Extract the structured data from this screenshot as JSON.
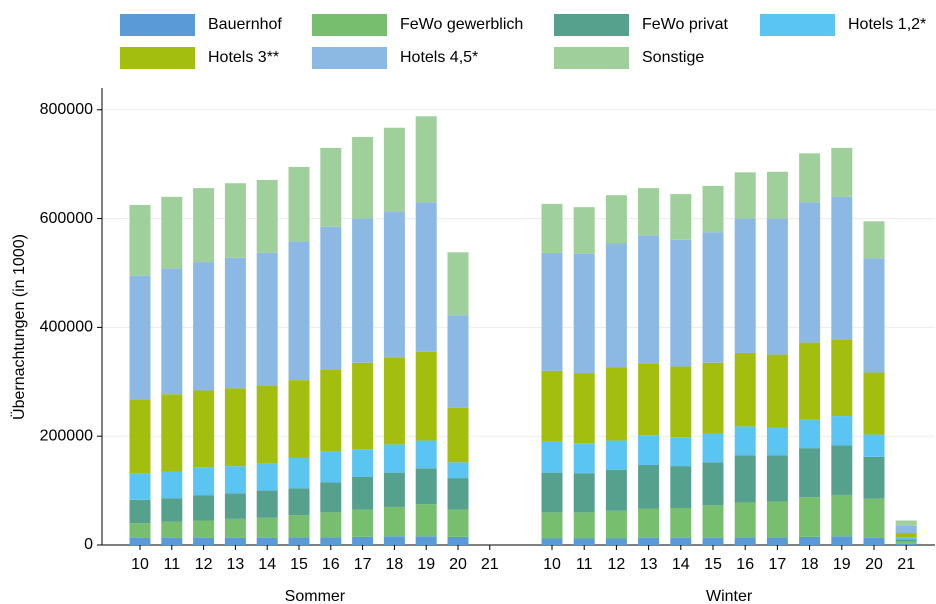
{
  "chart_data": {
    "type": "bar",
    "stacked": true,
    "y_label": "Übernachtungen (in 1000)",
    "ylim": [
      0,
      840000
    ],
    "yticks": [
      0,
      200000,
      400000,
      600000,
      800000
    ],
    "grid": true,
    "legend": "top",
    "series": [
      {
        "name": "Bauernhof",
        "color": "#5b9bd5"
      },
      {
        "name": "FeWo gewerblich",
        "color": "#77bf6e"
      },
      {
        "name": "FeWo privat",
        "color": "#56a08e"
      },
      {
        "name": "Hotels 1,2*",
        "color": "#5bc5f2"
      },
      {
        "name": "Hotels 3**",
        "color": "#a3be0f"
      },
      {
        "name": "Hotels 4,5*",
        "color": "#8cb9e3"
      },
      {
        "name": "Sonstige",
        "color": "#9fd09b"
      }
    ],
    "facets": [
      {
        "name": "Sommer",
        "categories": [
          "10",
          "11",
          "12",
          "13",
          "14",
          "15",
          "16",
          "17",
          "18",
          "19",
          "20",
          "21"
        ],
        "values": [
          [
            13000,
            13000,
            13000,
            13000,
            13000,
            14000,
            14000,
            15000,
            16000,
            16000,
            15000,
            0
          ],
          [
            27000,
            30000,
            32000,
            35000,
            37000,
            41000,
            46000,
            50000,
            54000,
            59000,
            50000,
            0
          ],
          [
            43000,
            43000,
            46000,
            47000,
            50000,
            49000,
            55000,
            60000,
            63000,
            66000,
            58000,
            0
          ],
          [
            49000,
            49000,
            52000,
            50000,
            50000,
            56000,
            57000,
            51000,
            52000,
            51000,
            29000,
            0
          ],
          [
            136000,
            142000,
            141000,
            143000,
            143000,
            143000,
            151000,
            159000,
            160000,
            163000,
            100000,
            0
          ],
          [
            227000,
            231000,
            236000,
            240000,
            244000,
            255000,
            262000,
            265000,
            267000,
            275000,
            170000,
            0
          ],
          [
            130000,
            132000,
            136000,
            137000,
            134000,
            137000,
            145000,
            150000,
            155000,
            158000,
            116000,
            0
          ]
        ]
      },
      {
        "name": "Winter",
        "categories": [
          "10",
          "11",
          "12",
          "13",
          "14",
          "15",
          "16",
          "17",
          "18",
          "19",
          "20",
          "21"
        ],
        "values": [
          [
            12000,
            12000,
            12000,
            13000,
            13000,
            13000,
            14000,
            14000,
            15000,
            16000,
            13000,
            2000
          ],
          [
            48000,
            48000,
            51000,
            54000,
            55000,
            60000,
            64000,
            66000,
            73000,
            76000,
            72000,
            4000
          ],
          [
            73000,
            72000,
            75000,
            80000,
            77000,
            79000,
            87000,
            85000,
            90000,
            91000,
            77000,
            4000
          ],
          [
            57000,
            55000,
            54000,
            55000,
            53000,
            53000,
            53000,
            51000,
            52000,
            54000,
            41000,
            4000
          ],
          [
            130000,
            129000,
            135000,
            132000,
            130000,
            130000,
            135000,
            134000,
            142000,
            141000,
            114000,
            8000
          ],
          [
            217000,
            219000,
            228000,
            234000,
            233000,
            240000,
            247000,
            250000,
            258000,
            262000,
            210000,
            13000
          ],
          [
            90000,
            86000,
            88000,
            88000,
            84000,
            85000,
            85000,
            86000,
            90000,
            90000,
            68000,
            10000
          ]
        ]
      }
    ]
  }
}
